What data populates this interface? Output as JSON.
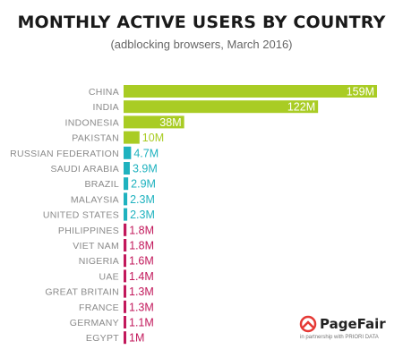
{
  "chart_data": {
    "type": "bar",
    "orientation": "horizontal",
    "title": "MONTHLY ACTIVE USERS BY COUNTRY",
    "subtitle": "(adblocking browsers, March 2016)",
    "unit_suffix": "M",
    "categories": [
      "CHINA",
      "INDIA",
      "INDONESIA",
      "PAKISTAN",
      "RUSSIAN FEDERATION",
      "SAUDI ARABIA",
      "BRAZIL",
      "MALAYSIA",
      "UNITED STATES",
      "PHILIPPINES",
      "VIET NAM",
      "NIGERIA",
      "UAE",
      "GREAT BRITAIN",
      "FRANCE",
      "GERMANY",
      "EGYPT"
    ],
    "values": [
      159,
      122,
      38,
      10,
      4.7,
      3.9,
      2.9,
      2.3,
      2.3,
      1.8,
      1.8,
      1.6,
      1.4,
      1.3,
      1.3,
      1.1,
      1
    ],
    "value_labels": [
      "159M",
      "122M",
      "38M",
      "10M",
      "4.7M",
      "3.9M",
      "2.9M",
      "2.3M",
      "2.3M",
      "1.8M",
      "1.8M",
      "1.6M",
      "1.4M",
      "1.3M",
      "1.3M",
      "1.1M",
      "1M"
    ],
    "groups": [
      "green",
      "green",
      "green",
      "green",
      "teal",
      "teal",
      "teal",
      "teal",
      "teal",
      "red",
      "red",
      "red",
      "red",
      "red",
      "red",
      "red",
      "red"
    ],
    "colors": {
      "green": "#a9cc24",
      "teal": "#1fb2bf",
      "red": "#c2185b"
    },
    "xlim": [
      0,
      159
    ],
    "grid": false,
    "legend": "none"
  },
  "logo": {
    "name": "PageFair",
    "tagline": "in partnership with PRIORI DATA",
    "icon": "pagefair-logo-icon"
  }
}
